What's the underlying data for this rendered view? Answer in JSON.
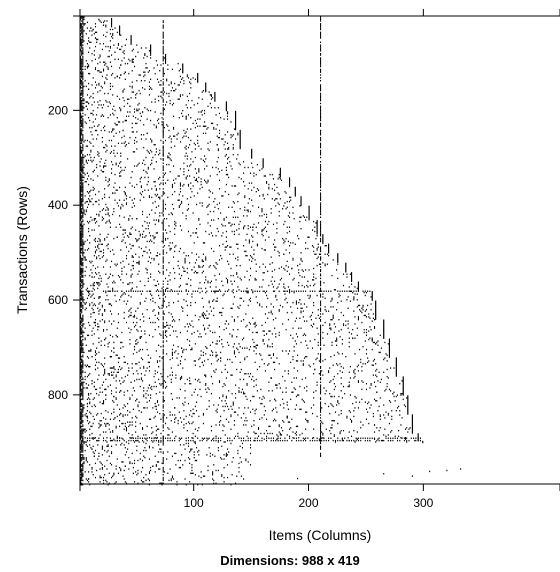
{
  "chart_data": {
    "type": "heatmap",
    "subtype": "binary-incidence-matrix",
    "title": "",
    "xlabel": "Items (Columns)",
    "ylabel": "Transactions (Rows)",
    "caption": "Dimensions: 988 x 419",
    "dimensions": {
      "rows": 988,
      "columns": 419
    },
    "xlim": [
      1,
      419
    ],
    "ylim": [
      988,
      1
    ],
    "x_ticks": [
      100,
      200,
      300
    ],
    "y_ticks": [
      200,
      400,
      600,
      800
    ],
    "grid": false,
    "legend": "none",
    "cell_color": "#000000",
    "background_color": "#ffffff",
    "frontier_description": "Filled cells are bounded on the right by a staircase frontier: the last non-empty column increases with the row index.",
    "frontier": [
      [
        1,
        4
      ],
      [
        5,
        28
      ],
      [
        20,
        35
      ],
      [
        40,
        45
      ],
      [
        60,
        62
      ],
      [
        80,
        75
      ],
      [
        100,
        90
      ],
      [
        120,
        103
      ],
      [
        140,
        110
      ],
      [
        160,
        118
      ],
      [
        180,
        128
      ],
      [
        200,
        136
      ],
      [
        240,
        140
      ],
      [
        280,
        150
      ],
      [
        300,
        160
      ],
      [
        320,
        175
      ],
      [
        340,
        183
      ],
      [
        360,
        188
      ],
      [
        380,
        193
      ],
      [
        400,
        200
      ],
      [
        430,
        207
      ],
      [
        460,
        212
      ],
      [
        480,
        217
      ],
      [
        500,
        225
      ],
      [
        520,
        232
      ],
      [
        540,
        237
      ],
      [
        560,
        243
      ],
      [
        580,
        255
      ],
      [
        600,
        258
      ],
      [
        640,
        265
      ],
      [
        680,
        270
      ],
      [
        720,
        276
      ],
      [
        760,
        282
      ],
      [
        800,
        286
      ],
      [
        840,
        290
      ],
      [
        880,
        295
      ],
      [
        896,
        299
      ]
    ],
    "dense_rows": [
      {
        "row": 580,
        "to_column": 252
      },
      {
        "row": 890,
        "to_column": 297
      },
      {
        "row": 895,
        "to_column": 297
      }
    ],
    "dense_columns": [
      {
        "column": 1,
        "to_row": 988
      },
      {
        "column": 2,
        "to_row": 988
      },
      {
        "column": 3,
        "to_row": 980
      },
      {
        "column": 73,
        "to_row": 988
      },
      {
        "column": 210,
        "to_row": 930
      }
    ],
    "scattered_tail": [
      {
        "row": 965,
        "column": 265
      },
      {
        "row": 960,
        "column": 305
      },
      {
        "row": 958,
        "column": 320
      },
      {
        "row": 955,
        "column": 332
      },
      {
        "row": 970,
        "column": 290
      },
      {
        "row": 975,
        "column": 190
      }
    ]
  }
}
